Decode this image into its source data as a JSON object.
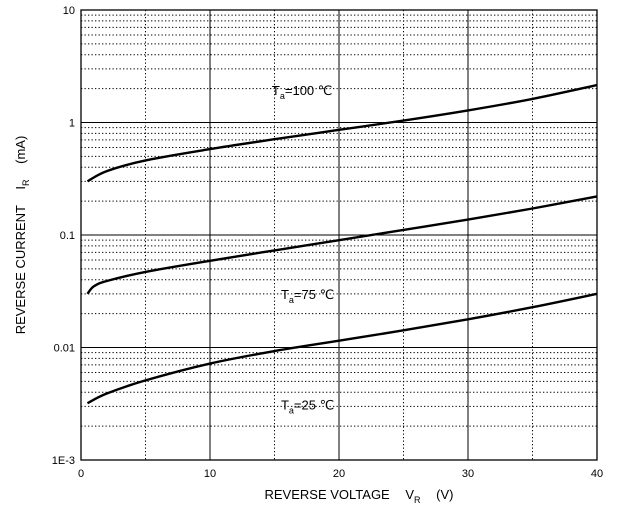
{
  "chart_data": {
    "type": "line",
    "xlabel": {
      "text": "REVERSE VOLTAGE",
      "symbol": "V",
      "subscript": "R",
      "unit": "(V)"
    },
    "ylabel": {
      "text": "REVERSE CURRENT",
      "symbol": "I",
      "subscript": "R",
      "unit": "(mA)"
    },
    "x_axis": {
      "range": [
        0,
        40
      ],
      "ticks": [
        0,
        10,
        20,
        30,
        40
      ],
      "tick_labels": [
        "0",
        "10",
        "20",
        "30",
        "40"
      ]
    },
    "y_axis": {
      "scale": "log",
      "range": [
        0.001,
        10
      ],
      "ticks": [
        0.001,
        0.01,
        0.1,
        1,
        10
      ],
      "tick_labels": [
        "1E-3",
        "0.01",
        "0.1",
        "1",
        "10"
      ]
    },
    "grid": true,
    "series": [
      {
        "label": {
          "symbol": "T",
          "subscript": "a",
          "value": "=100 ℃"
        },
        "label_at": {
          "x": 14.8,
          "y": 1.75
        },
        "points": [
          [
            0.5,
            0.3
          ],
          [
            2,
            0.37
          ],
          [
            5,
            0.46
          ],
          [
            10,
            0.58
          ],
          [
            15,
            0.71
          ],
          [
            20,
            0.86
          ],
          [
            25,
            1.04
          ],
          [
            30,
            1.28
          ],
          [
            35,
            1.62
          ],
          [
            40,
            2.15
          ]
        ]
      },
      {
        "label": {
          "symbol": "T",
          "subscript": "a",
          "value": "=75 ℃"
        },
        "label_at": {
          "x": 15.5,
          "y": 0.027
        },
        "points": [
          [
            0.5,
            0.03
          ],
          [
            1,
            0.035
          ],
          [
            2,
            0.039
          ],
          [
            5,
            0.047
          ],
          [
            10,
            0.059
          ],
          [
            15,
            0.073
          ],
          [
            20,
            0.09
          ],
          [
            25,
            0.111
          ],
          [
            30,
            0.137
          ],
          [
            35,
            0.172
          ],
          [
            40,
            0.22
          ]
        ]
      },
      {
        "label": {
          "symbol": "T",
          "subscript": "a",
          "value": "=25 ℃"
        },
        "label_at": {
          "x": 15.5,
          "y": 0.0028
        },
        "points": [
          [
            0.5,
            0.0032
          ],
          [
            2,
            0.0039
          ],
          [
            5,
            0.0051
          ],
          [
            10,
            0.0072
          ],
          [
            15,
            0.0093
          ],
          [
            20,
            0.0115
          ],
          [
            25,
            0.0142
          ],
          [
            30,
            0.0178
          ],
          [
            35,
            0.0228
          ],
          [
            40,
            0.03
          ]
        ]
      }
    ]
  }
}
